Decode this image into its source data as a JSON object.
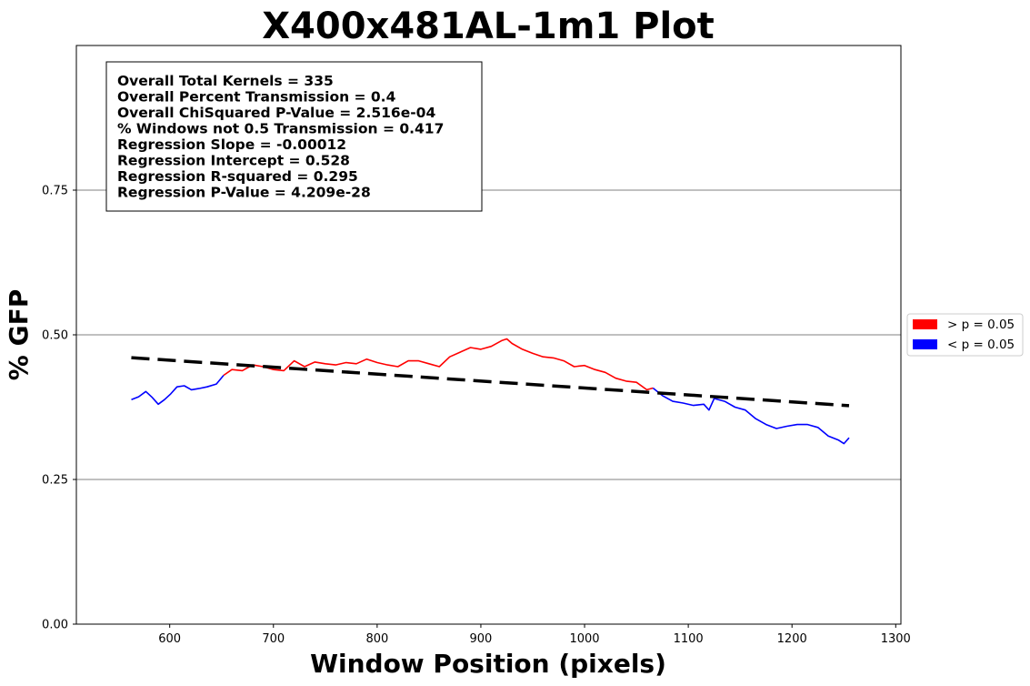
{
  "chart_data": {
    "type": "line",
    "title": "X400x481AL-1m1 Plot",
    "xlabel": "Window Position (pixels)",
    "ylabel": "% GFP",
    "xlim": [
      510,
      1305
    ],
    "ylim": [
      0,
      1.0
    ],
    "xticks": [
      600,
      700,
      800,
      900,
      1000,
      1100,
      1200,
      1300
    ],
    "xtick_labels": [
      "600",
      "700",
      "800",
      "900",
      "1000",
      "1100",
      "1200",
      "1300"
    ],
    "yticks": [
      0.0,
      0.25,
      0.5,
      0.75
    ],
    "ytick_labels": [
      "0.00",
      "0.25",
      "0.50",
      "0.75"
    ],
    "grid": "horizontal",
    "legend": {
      "placement": "outside-right",
      "entries": [
        {
          "label": "> p = 0.05",
          "color": "#ff0000"
        },
        {
          "label": "< p = 0.05",
          "color": "#0000ff"
        }
      ]
    },
    "stats": [
      "Overall Total Kernels = 335",
      "Overall Percent Transmission = 0.4",
      "Overall ChiSquared P-Value = 2.516e-04",
      "% Windows not 0.5 Transmission = 0.417",
      "Regression Slope = -0.00012",
      "Regression Intercept = 0.528",
      "Regression R-squared = 0.295",
      "Regression P-Value = 4.209e-28"
    ],
    "series": [
      {
        "significance": "< p = 0.05",
        "color": "#0000ff",
        "x": [
          563,
          570,
          577,
          583,
          589,
          595,
          601,
          607,
          614,
          621,
          628,
          636,
          645,
          652
        ],
        "y": [
          0.388,
          0.393,
          0.402,
          0.392,
          0.38,
          0.388,
          0.398,
          0.41,
          0.412,
          0.405,
          0.407,
          0.41,
          0.415,
          0.43
        ]
      },
      {
        "significance": "> p = 0.05",
        "color": "#ff0000",
        "x": [
          652,
          660,
          670,
          680,
          690,
          700,
          710,
          720,
          730,
          740,
          750,
          760,
          770,
          780,
          790,
          800,
          810,
          820,
          830,
          840,
          850,
          860,
          870,
          880,
          890,
          900,
          910,
          920,
          925,
          930,
          940,
          950,
          960,
          970,
          980,
          990,
          1000,
          1010,
          1020,
          1030,
          1040,
          1050,
          1060,
          1066
        ],
        "y": [
          0.43,
          0.44,
          0.438,
          0.448,
          0.445,
          0.44,
          0.438,
          0.455,
          0.445,
          0.453,
          0.45,
          0.448,
          0.452,
          0.45,
          0.458,
          0.452,
          0.448,
          0.445,
          0.455,
          0.455,
          0.45,
          0.445,
          0.462,
          0.47,
          0.478,
          0.475,
          0.48,
          0.49,
          0.493,
          0.485,
          0.475,
          0.468,
          0.462,
          0.46,
          0.455,
          0.445,
          0.447,
          0.44,
          0.435,
          0.425,
          0.42,
          0.418,
          0.405,
          0.408
        ]
      },
      {
        "significance": "< p = 0.05",
        "color": "#0000ff",
        "x": [
          1066,
          1075,
          1085,
          1095,
          1105,
          1115,
          1120,
          1125,
          1135,
          1145,
          1155,
          1165,
          1175,
          1185,
          1195,
          1205,
          1215,
          1225,
          1235,
          1245,
          1250,
          1255
        ],
        "y": [
          0.408,
          0.395,
          0.385,
          0.382,
          0.378,
          0.38,
          0.37,
          0.39,
          0.385,
          0.375,
          0.37,
          0.355,
          0.345,
          0.338,
          0.342,
          0.345,
          0.345,
          0.34,
          0.325,
          0.318,
          0.312,
          0.322
        ]
      }
    ],
    "regression": {
      "x": [
        563,
        1255
      ],
      "y": [
        0.4605,
        0.3775
      ],
      "style": "dashed",
      "color": "#000000"
    }
  }
}
